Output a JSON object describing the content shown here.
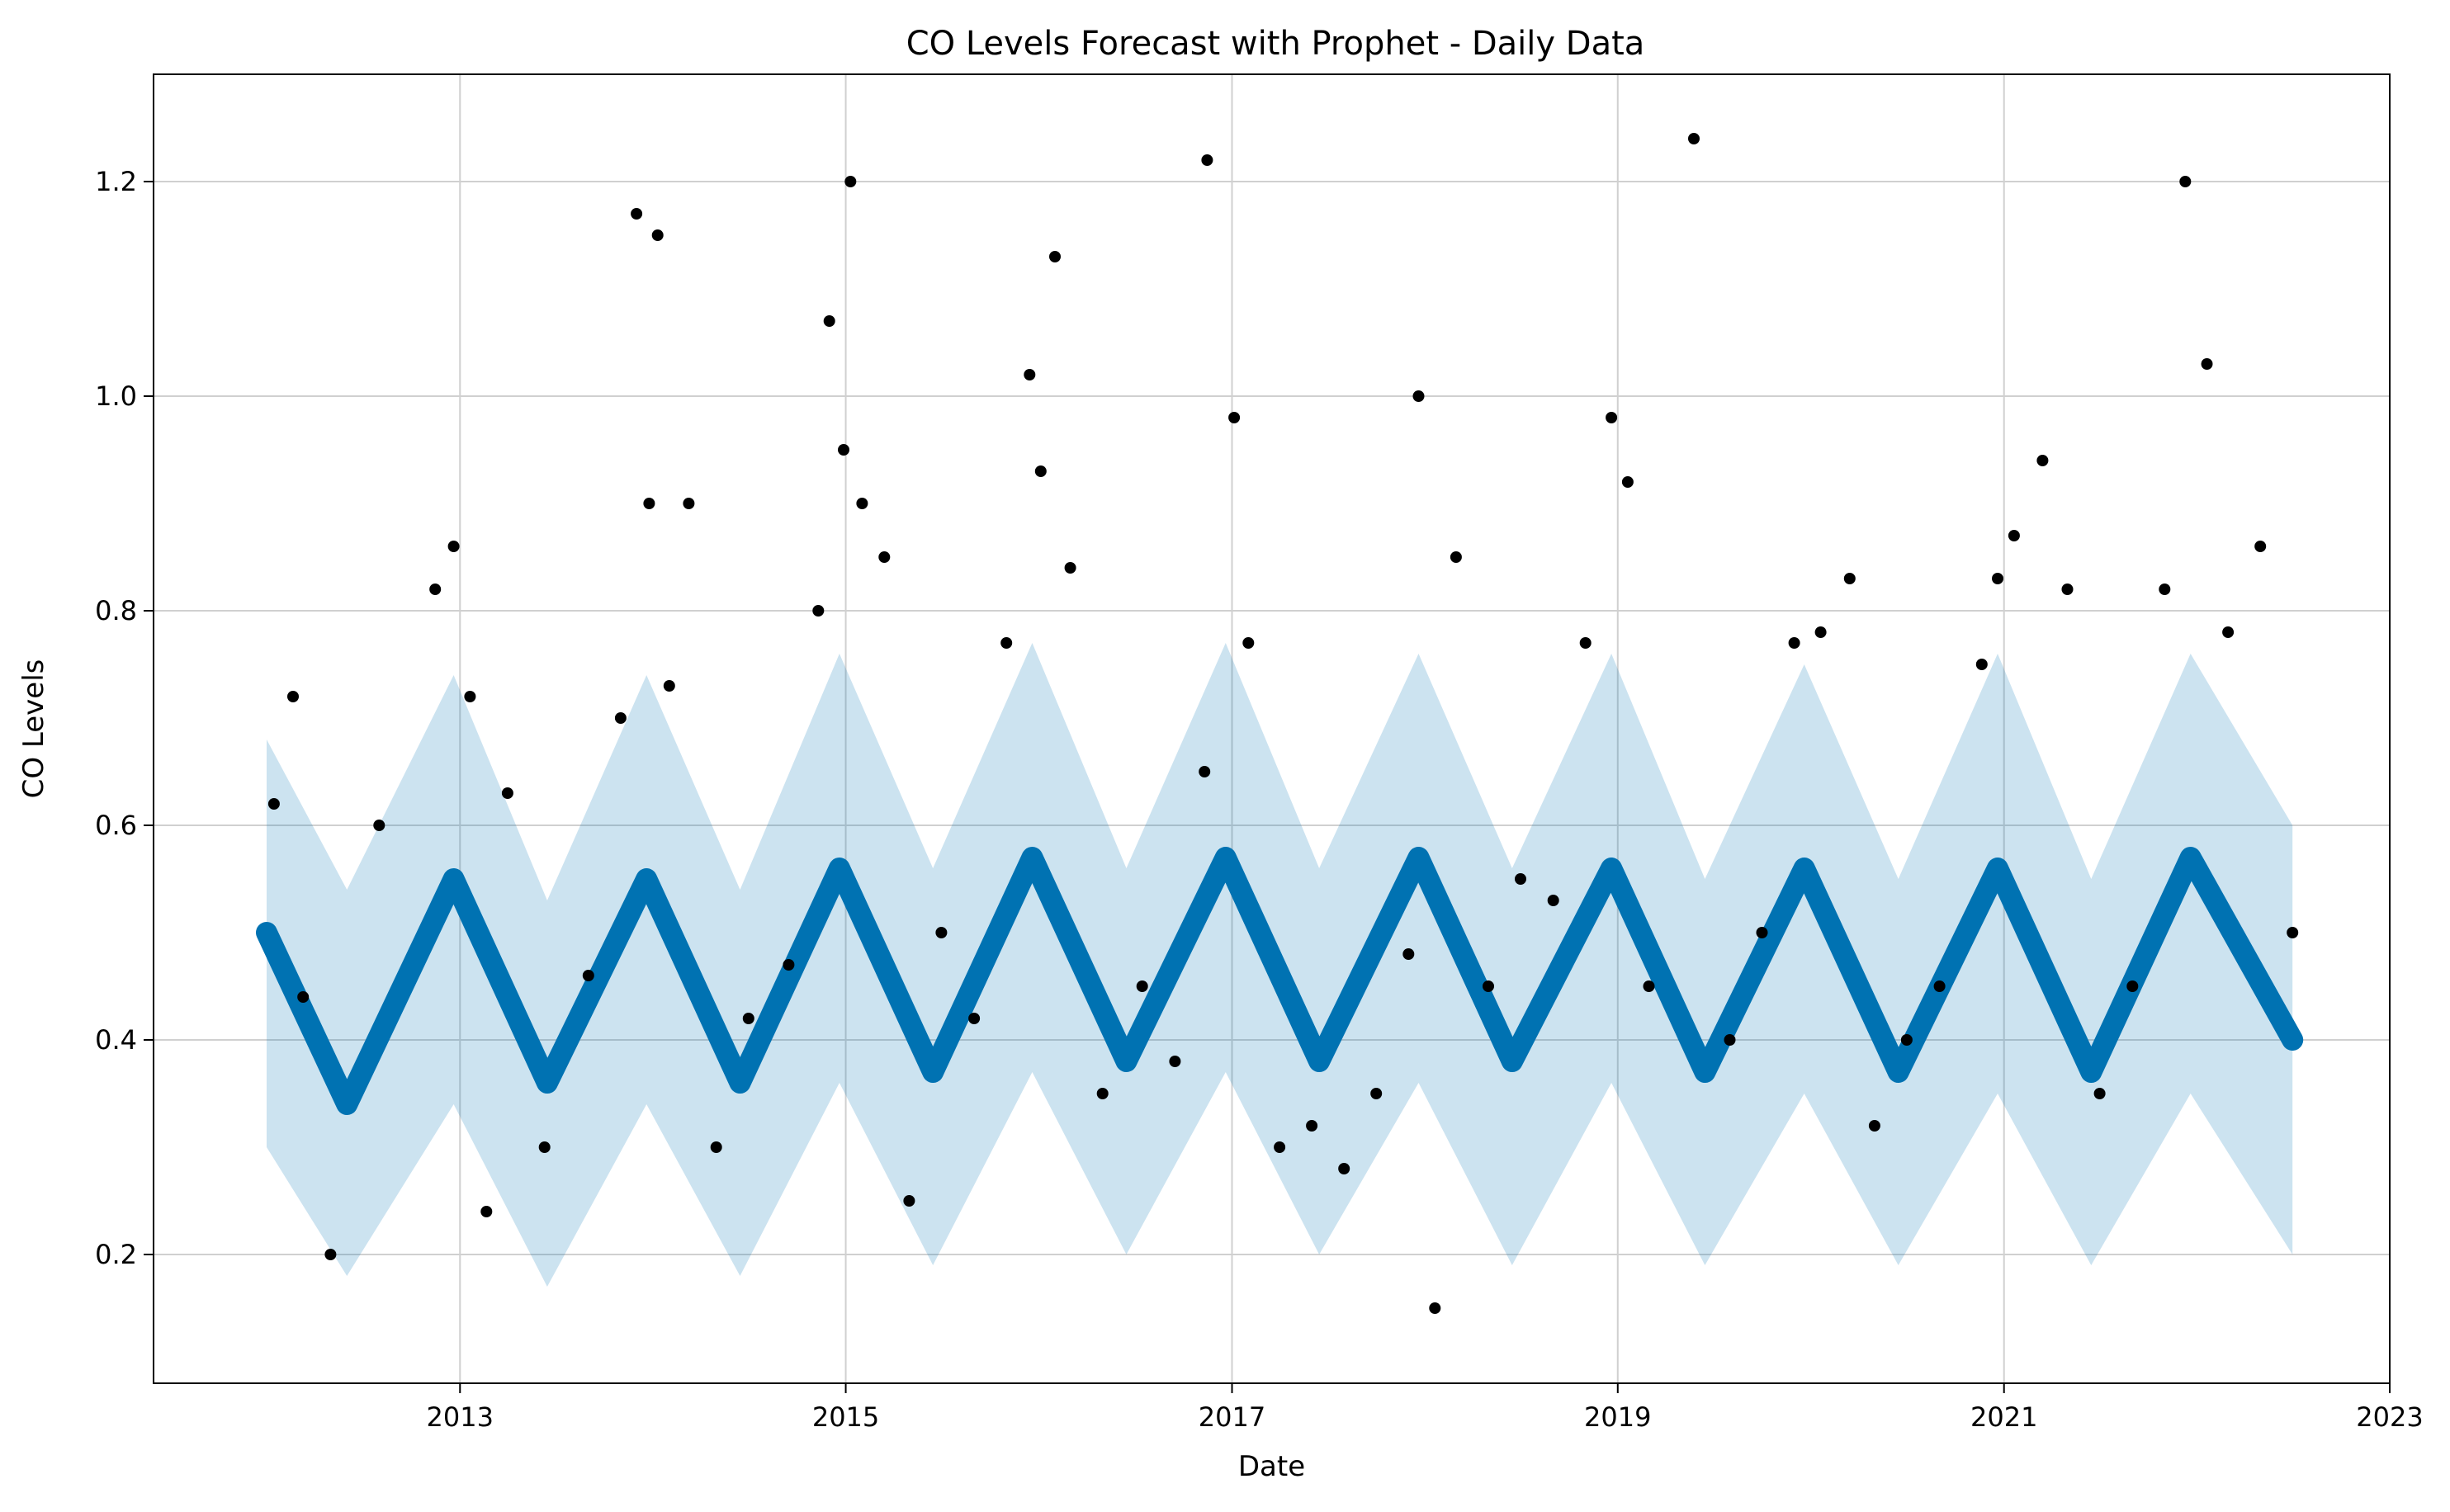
{
  "chart_data": {
    "type": "line",
    "title": "CO Levels Forecast with Prophet - Daily Data",
    "xlabel": "Date",
    "ylabel": "CO Levels",
    "xlim": [
      "2011-06-01",
      "2023-01-01"
    ],
    "ylim": [
      0.08,
      1.3
    ],
    "x_ticks": [
      "2013",
      "2015",
      "2017",
      "2019",
      "2021",
      "2023"
    ],
    "y_ticks": [
      "0.2",
      "0.4",
      "0.6",
      "0.8",
      "1.0",
      "1.2"
    ],
    "grid": true,
    "legend": "none",
    "colors": {
      "observed": "#000000",
      "forecast": "#0072B2",
      "uncertainty": "#0072B2"
    },
    "series": [
      {
        "kind": "uncertainty-interval",
        "x": [
          "2012-01-01",
          "2012-06-01",
          "2012-12-20",
          "2013-06-15",
          "2013-12-20",
          "2014-06-15",
          "2014-12-20",
          "2015-06-15",
          "2015-12-20",
          "2016-06-15",
          "2016-12-20",
          "2017-06-15",
          "2017-12-20",
          "2018-06-15",
          "2018-12-20",
          "2019-06-15",
          "2019-12-20",
          "2020-06-15",
          "2020-12-20",
          "2021-06-15",
          "2021-12-20",
          "2022-07-01"
        ],
        "lower": [
          0.3,
          0.18,
          0.34,
          0.17,
          0.34,
          0.18,
          0.36,
          0.19,
          0.37,
          0.2,
          0.37,
          0.2,
          0.36,
          0.19,
          0.36,
          0.19,
          0.35,
          0.19,
          0.35,
          0.19,
          0.35,
          0.2
        ],
        "upper": [
          0.68,
          0.54,
          0.74,
          0.53,
          0.74,
          0.54,
          0.76,
          0.56,
          0.77,
          0.56,
          0.77,
          0.56,
          0.76,
          0.56,
          0.76,
          0.55,
          0.75,
          0.55,
          0.76,
          0.55,
          0.76,
          0.6
        ]
      },
      {
        "kind": "forecast",
        "x": [
          "2012-01-01",
          "2012-06-01",
          "2012-12-20",
          "2013-06-15",
          "2013-12-20",
          "2014-06-15",
          "2014-12-20",
          "2015-06-15",
          "2015-12-20",
          "2016-06-15",
          "2016-12-20",
          "2017-06-15",
          "2017-12-20",
          "2018-06-15",
          "2018-12-20",
          "2019-06-15",
          "2019-12-20",
          "2020-06-15",
          "2020-12-20",
          "2021-06-15",
          "2021-12-20",
          "2022-07-01"
        ],
        "y": [
          0.5,
          0.34,
          0.55,
          0.36,
          0.55,
          0.36,
          0.56,
          0.37,
          0.57,
          0.38,
          0.57,
          0.38,
          0.57,
          0.38,
          0.56,
          0.37,
          0.56,
          0.37,
          0.56,
          0.37,
          0.57,
          0.4
        ]
      },
      {
        "kind": "observed",
        "x": [
          "2012-01-15",
          "2012-02-20",
          "2012-03-10",
          "2012-05-01",
          "2012-08-01",
          "2012-11-15",
          "2012-12-20",
          "2013-01-20",
          "2013-02-20",
          "2013-04-01",
          "2013-06-10",
          "2013-09-01",
          "2013-11-01",
          "2013-12-01",
          "2013-12-25",
          "2014-01-10",
          "2014-02-01",
          "2014-03-10",
          "2014-05-01",
          "2014-07-01",
          "2014-09-15",
          "2014-11-10",
          "2014-12-01",
          "2014-12-28",
          "2015-01-10",
          "2015-02-01",
          "2015-03-15",
          "2015-05-01",
          "2015-07-01",
          "2015-09-01",
          "2015-11-01",
          "2015-12-15",
          "2016-01-05",
          "2016-02-01",
          "2016-03-01",
          "2016-05-01",
          "2016-07-15",
          "2016-09-15",
          "2016-11-10",
          "2016-11-15",
          "2017-01-05",
          "2017-02-01",
          "2017-04-01",
          "2017-06-01",
          "2017-08-01",
          "2017-10-01",
          "2017-12-01",
          "2017-12-20",
          "2018-01-20",
          "2018-03-01",
          "2018-05-01",
          "2018-07-01",
          "2018-09-01",
          "2018-11-01",
          "2018-12-20",
          "2019-01-20",
          "2019-03-01",
          "2019-05-25",
          "2019-08-01",
          "2019-10-01",
          "2019-12-01",
          "2020-01-20",
          "2020-03-15",
          "2020-05-01",
          "2020-07-01",
          "2020-09-01",
          "2020-11-20",
          "2020-12-20",
          "2021-01-20",
          "2021-03-15",
          "2021-05-01",
          "2021-07-01",
          "2021-09-01",
          "2021-11-01",
          "2021-12-10",
          "2022-01-20",
          "2022-03-01",
          "2022-05-01",
          "2022-07-01"
        ],
        "y": [
          0.62,
          0.72,
          0.44,
          0.2,
          0.6,
          0.82,
          0.86,
          0.72,
          0.24,
          0.63,
          0.3,
          0.46,
          0.7,
          1.17,
          0.9,
          1.15,
          0.73,
          0.9,
          0.3,
          0.42,
          0.47,
          0.8,
          1.07,
          0.95,
          1.2,
          0.9,
          0.85,
          0.25,
          0.5,
          0.42,
          0.77,
          1.02,
          0.93,
          1.13,
          0.84,
          0.35,
          0.45,
          0.38,
          0.65,
          1.22,
          0.98,
          0.77,
          0.3,
          0.32,
          0.28,
          0.35,
          0.48,
          1.0,
          0.15,
          0.85,
          0.45,
          0.55,
          0.53,
          0.77,
          0.98,
          0.92,
          0.45,
          1.24,
          0.4,
          0.5,
          0.77,
          0.78,
          0.83,
          0.32,
          0.4,
          0.45,
          0.75,
          0.83,
          0.87,
          0.94,
          0.82,
          0.35,
          0.45,
          0.82,
          1.2,
          1.03,
          0.78,
          0.86,
          0.5
        ]
      }
    ]
  }
}
